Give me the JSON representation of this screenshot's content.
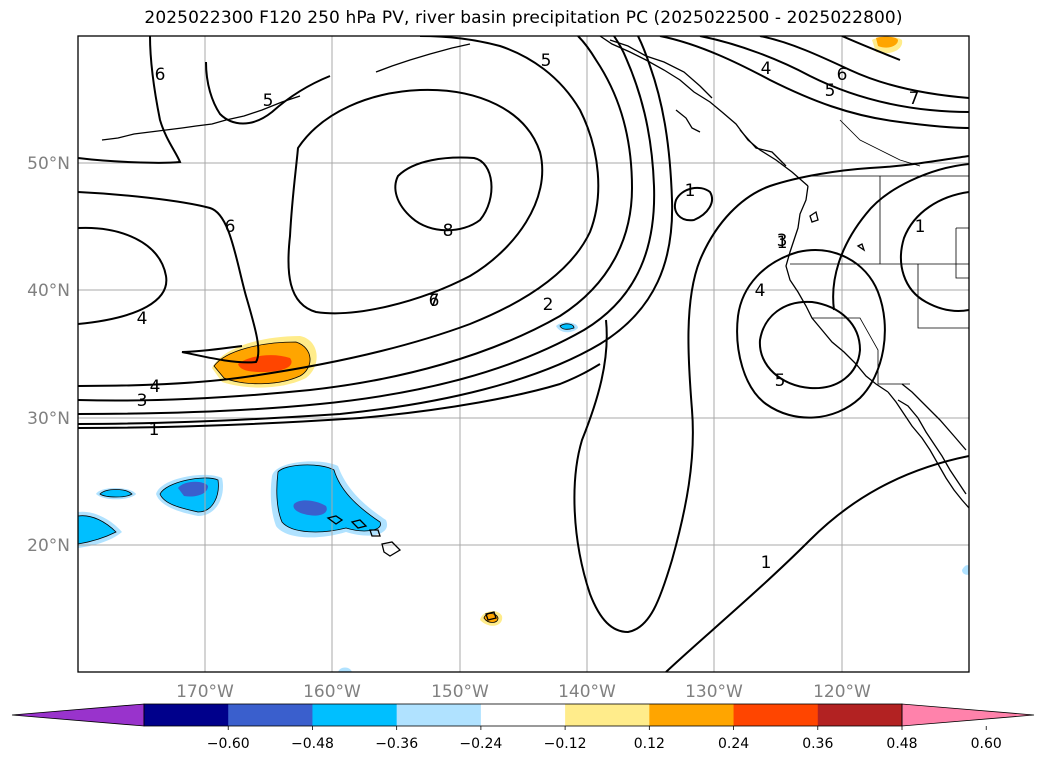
{
  "title": "2025022300 F120 250 hPa PV, river basin precipitation PC (2025022500 - 2025022800)",
  "map": {
    "lon_ticks": [
      "170°W",
      "160°W",
      "150°W",
      "140°W",
      "130°W",
      "120°W"
    ],
    "lat_ticks": [
      "50°N",
      "40°N",
      "30°N",
      "20°N"
    ],
    "lon_range": [
      -180,
      -110
    ],
    "lat_range": [
      10,
      60
    ],
    "grid": true
  },
  "contours": {
    "color": "#000000",
    "labels": [
      "6",
      "5",
      "5",
      "4",
      "6",
      "5",
      "7",
      "6",
      "1",
      "8",
      "1",
      "1",
      "3",
      "4",
      "6",
      "7",
      "2",
      "4",
      "5",
      "4",
      "3",
      "1",
      "1"
    ]
  },
  "colorbar": {
    "ticks": [
      "−0.60",
      "−0.48",
      "−0.36",
      "−0.24",
      "−0.12",
      "0.12",
      "0.24",
      "0.36",
      "0.48",
      "0.60"
    ],
    "colors": [
      "#9933cc",
      "#00008b",
      "#3a5fcd",
      "#00bfff",
      "#b0e2ff",
      "#ffffff",
      "#ffec8b",
      "#ffa500",
      "#ff4500",
      "#b22222",
      "#ff82ab"
    ],
    "extend": "both"
  }
}
